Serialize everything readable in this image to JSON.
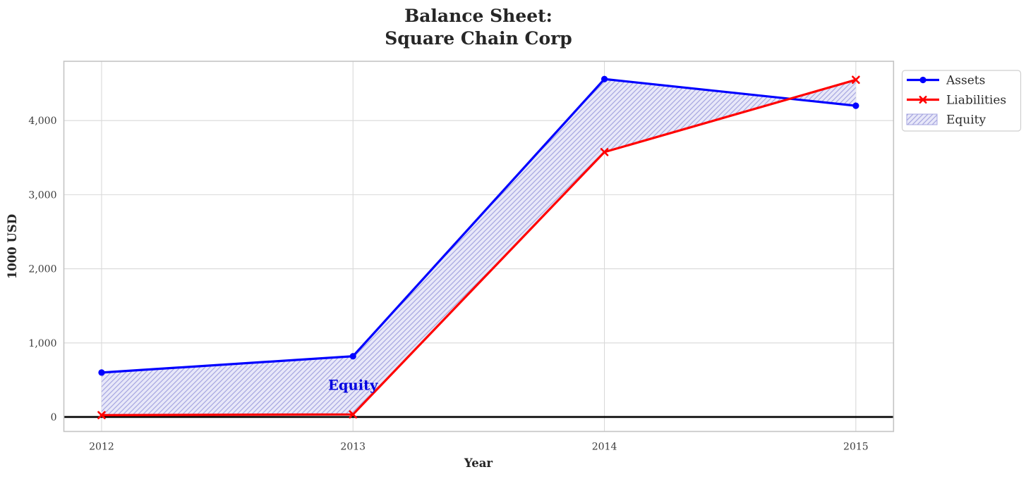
{
  "title": {
    "line1": "Balance Sheet:",
    "line2": "Square Chain Corp",
    "color": "#262626"
  },
  "chart_data": {
    "type": "line",
    "title": "Balance Sheet:\nSquare Chain Corp",
    "xlabel": "Year",
    "ylabel": "1000 USD",
    "x": [
      2012,
      2013,
      2014,
      2015
    ],
    "x_tick_labels": [
      "2012",
      "2013",
      "2014",
      "2015"
    ],
    "y_ticks": [
      0,
      1000,
      2000,
      3000,
      4000
    ],
    "y_tick_labels": [
      "0",
      "1,000",
      "2,000",
      "3,000",
      "4,000"
    ],
    "xlim": [
      2011.85,
      2015.15
    ],
    "ylim": [
      -195,
      4800
    ],
    "grid": true,
    "zero_line_y": 0,
    "series": [
      {
        "name": "Assets",
        "color": "#0000ff",
        "marker": "circle",
        "values": [
          600,
          820,
          4560,
          4200
        ]
      },
      {
        "name": "Liabilities",
        "color": "#ff0000",
        "marker": "x",
        "values": [
          25,
          35,
          3575,
          4550
        ]
      }
    ],
    "equity_fill": {
      "label": "Equity",
      "between": [
        "Assets",
        "Liabilities"
      ],
      "facecolor": "#e8e8f9",
      "hatch": "//",
      "hatch_color": "#a6a6e0",
      "values": [
        575,
        785,
        985,
        -350
      ]
    },
    "annotation": {
      "text": "Equity",
      "x": 2013,
      "y": 430,
      "color": "#0000e0"
    },
    "legend": {
      "position": "upper-right-outside",
      "items": [
        "Assets",
        "Liabilities",
        "Equity"
      ]
    }
  },
  "colors": {
    "background": "#ffffff",
    "grid": "#d9d9d9",
    "spine": "#c4c4c4",
    "tick_text": "#3c3c3c",
    "zero_line": "#000000",
    "legend_border": "#cfcfcf",
    "legend_bg": "#ffffff"
  }
}
